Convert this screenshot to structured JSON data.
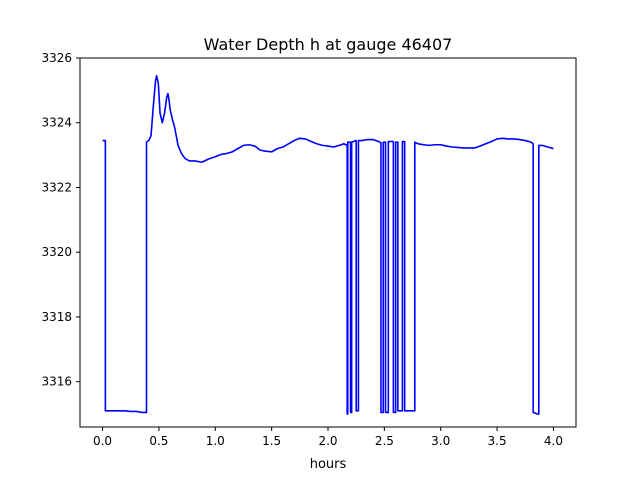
{
  "chart_data": {
    "type": "line",
    "title": "Water Depth h at gauge 46407",
    "xlabel": "hours",
    "ylabel": "",
    "xlim": [
      -0.2,
      4.2
    ],
    "ylim": [
      3314.6,
      3326.0
    ],
    "xticks": [
      0.0,
      0.5,
      1.0,
      1.5,
      2.0,
      2.5,
      3.0,
      3.5,
      4.0
    ],
    "xtick_labels": [
      "0.0",
      "0.5",
      "1.0",
      "1.5",
      "2.0",
      "2.5",
      "3.0",
      "3.5",
      "4.0"
    ],
    "yticks": [
      3316,
      3318,
      3320,
      3322,
      3324,
      3326
    ],
    "ytick_labels": [
      "3316",
      "3318",
      "3320",
      "3322",
      "3324",
      "3326"
    ],
    "grid": false,
    "legend": "none",
    "series_color": "#0000ff",
    "series": [
      {
        "x": [
          0.0,
          0.025,
          0.025,
          0.05,
          0.1,
          0.15,
          0.2,
          0.25,
          0.3,
          0.35,
          0.39,
          0.39,
          0.41,
          0.43,
          0.45,
          0.47,
          0.48,
          0.495,
          0.51,
          0.53,
          0.55,
          0.57,
          0.58,
          0.59,
          0.6,
          0.62,
          0.64,
          0.67,
          0.7,
          0.73,
          0.77,
          0.82,
          0.88,
          0.94,
          1.0,
          1.05,
          1.1,
          1.15,
          1.2,
          1.25,
          1.3,
          1.35,
          1.4,
          1.45,
          1.5,
          1.55,
          1.6,
          1.65,
          1.7,
          1.75,
          1.8,
          1.85,
          1.9,
          1.95,
          2.0,
          2.05,
          2.1,
          2.14,
          2.17,
          2.17,
          2.175,
          2.175,
          2.2,
          2.2,
          2.21,
          2.21,
          2.25,
          2.25,
          2.27,
          2.27,
          2.3,
          2.35,
          2.4,
          2.45,
          2.47,
          2.47,
          2.49,
          2.49,
          2.51,
          2.51,
          2.535,
          2.535,
          2.58,
          2.58,
          2.6,
          2.6,
          2.62,
          2.62,
          2.66,
          2.66,
          2.68,
          2.68,
          2.77,
          2.77,
          2.8,
          2.85,
          2.9,
          2.95,
          3.0,
          3.05,
          3.1,
          3.2,
          3.3,
          3.35,
          3.4,
          3.45,
          3.5,
          3.55,
          3.6,
          3.65,
          3.7,
          3.75,
          3.8,
          3.82,
          3.82,
          3.86,
          3.87,
          3.87,
          3.9,
          4.0
        ],
        "y": [
          3323.45,
          3323.45,
          3315.1,
          3315.1,
          3315.1,
          3315.1,
          3315.1,
          3315.08,
          3315.08,
          3315.05,
          3315.05,
          3323.4,
          3323.45,
          3323.6,
          3324.5,
          3325.3,
          3325.45,
          3325.2,
          3324.3,
          3324.0,
          3324.3,
          3324.8,
          3324.9,
          3324.7,
          3324.4,
          3324.1,
          3323.85,
          3323.3,
          3323.05,
          3322.9,
          3322.82,
          3322.82,
          3322.78,
          3322.88,
          3322.95,
          3323.02,
          3323.05,
          3323.1,
          3323.2,
          3323.3,
          3323.32,
          3323.28,
          3323.15,
          3323.12,
          3323.1,
          3323.2,
          3323.25,
          3323.35,
          3323.45,
          3323.52,
          3323.5,
          3323.42,
          3323.35,
          3323.3,
          3323.28,
          3323.25,
          3323.3,
          3323.35,
          3323.3,
          3315.0,
          3315.0,
          3323.4,
          3323.4,
          3315.05,
          3315.05,
          3323.4,
          3323.45,
          3315.1,
          3315.1,
          3323.45,
          3323.45,
          3323.48,
          3323.48,
          3323.42,
          3323.38,
          3315.05,
          3315.05,
          3323.4,
          3323.4,
          3315.05,
          3315.05,
          3323.42,
          3323.42,
          3315.05,
          3315.05,
          3323.4,
          3323.4,
          3315.1,
          3315.1,
          3323.42,
          3323.42,
          3315.1,
          3315.1,
          3323.4,
          3323.35,
          3323.32,
          3323.3,
          3323.32,
          3323.32,
          3323.28,
          3323.25,
          3323.22,
          3323.22,
          3323.28,
          3323.35,
          3323.42,
          3323.5,
          3323.52,
          3323.5,
          3323.5,
          3323.48,
          3323.45,
          3323.4,
          3323.35,
          3315.05,
          3315.0,
          3315.0,
          3323.3,
          3323.3,
          3323.2
        ]
      }
    ]
  }
}
